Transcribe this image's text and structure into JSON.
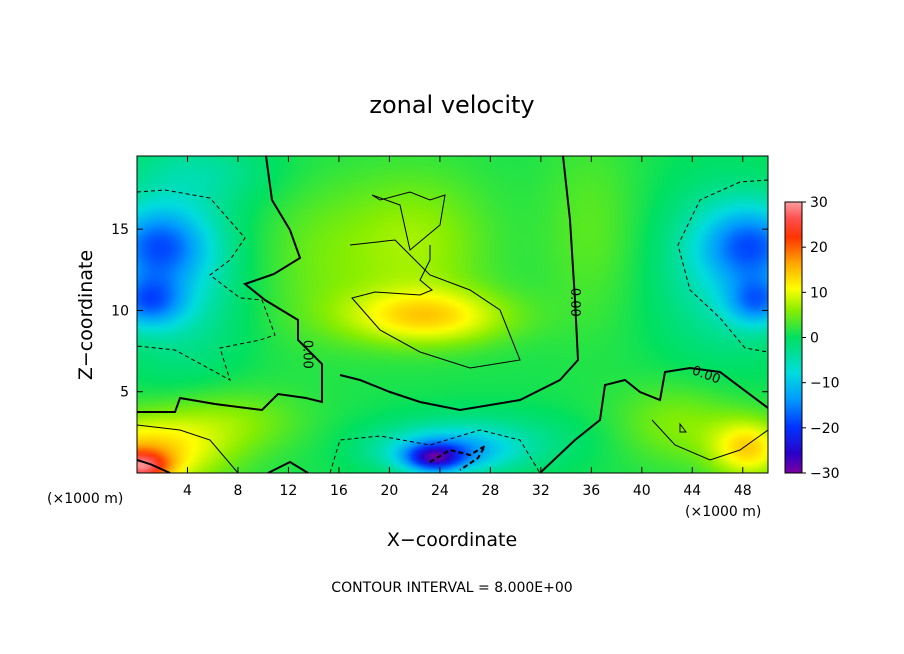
{
  "chart_data": {
    "type": "heatmap",
    "title": "zonal velocity",
    "xlabel": "X−coordinate",
    "ylabel": "Z−coordinate",
    "x_unit": "(×1000 m)",
    "y_unit": "(×1000 m)",
    "xlim": [
      0,
      50
    ],
    "ylim": [
      0,
      19.5
    ],
    "x_ticks": [
      4,
      8,
      12,
      16,
      20,
      24,
      28,
      32,
      36,
      40,
      44,
      48
    ],
    "x_tick_labels": [
      "4",
      "8",
      "12",
      "16",
      "20",
      "24",
      "28",
      "32",
      "36",
      "40",
      "44",
      "48"
    ],
    "y_ticks": [
      5,
      10,
      15
    ],
    "y_tick_labels": [
      "5",
      "10",
      "15"
    ],
    "colorbar": {
      "min": -30,
      "max": 30,
      "ticks": [
        30,
        20,
        10,
        0,
        -10,
        -20,
        -30
      ],
      "tick_labels": [
        "30",
        "20",
        "10",
        "0",
        "−10",
        "−20",
        "−30"
      ]
    },
    "contour_interval_text": "CONTOUR INTERVAL = 8.000E+00",
    "contour_labels": [
      {
        "text": "0.00",
        "x": 13.2,
        "y": 7.3,
        "rotate": 90
      },
      {
        "text": "0.00",
        "x": 34.4,
        "y": 10.5,
        "rotate": 90
      },
      {
        "text": "0.00",
        "x": 45.0,
        "y": 5.8,
        "rotate": 20
      }
    ],
    "blobs": [
      {
        "x": 0.5,
        "y": 1.2,
        "rx": 6,
        "ry": 2.2,
        "v": 13
      },
      {
        "x": 0.3,
        "y": 0.4,
        "rx": 2.2,
        "ry": 0.9,
        "v": 17
      },
      {
        "x": 7,
        "y": 3.2,
        "rx": 6,
        "ry": 2,
        "v": 5
      },
      {
        "x": 1.5,
        "y": 14,
        "rx": 4,
        "ry": 2.4,
        "v": -15
      },
      {
        "x": 0.8,
        "y": 10.5,
        "rx": 3,
        "ry": 1.6,
        "v": -14
      },
      {
        "x": 3.5,
        "y": 12,
        "rx": 5,
        "ry": 6,
        "v": -6
      },
      {
        "x": 5,
        "y": 18.5,
        "rx": 6,
        "ry": 2,
        "v": -4
      },
      {
        "x": 23,
        "y": 9.6,
        "rx": 6.5,
        "ry": 1.7,
        "v": 11
      },
      {
        "x": 22,
        "y": 14,
        "rx": 6,
        "ry": 4.5,
        "v": 6
      },
      {
        "x": 24.5,
        "y": 1.3,
        "rx": 5,
        "ry": 1.3,
        "v": -12
      },
      {
        "x": 23.5,
        "y": 0.9,
        "rx": 2.2,
        "ry": 0.8,
        "v": -17
      },
      {
        "x": 27,
        "y": 2,
        "rx": 8,
        "ry": 1.8,
        "v": -5
      },
      {
        "x": 48.8,
        "y": 14,
        "rx": 4,
        "ry": 2.4,
        "v": -15
      },
      {
        "x": 49.2,
        "y": 10.5,
        "rx": 2.5,
        "ry": 1.5,
        "v": -13
      },
      {
        "x": 46.5,
        "y": 12.5,
        "rx": 5.5,
        "ry": 5.5,
        "v": -6
      },
      {
        "x": 48.5,
        "y": 1.5,
        "rx": 3,
        "ry": 1.8,
        "v": 12
      },
      {
        "x": 43,
        "y": 3,
        "rx": 5,
        "ry": 2.5,
        "v": 5
      },
      {
        "x": 36,
        "y": 15,
        "rx": 4,
        "ry": 6,
        "v": 3
      },
      {
        "x": 14,
        "y": 13,
        "rx": 5,
        "ry": 5,
        "v": 3
      }
    ]
  }
}
